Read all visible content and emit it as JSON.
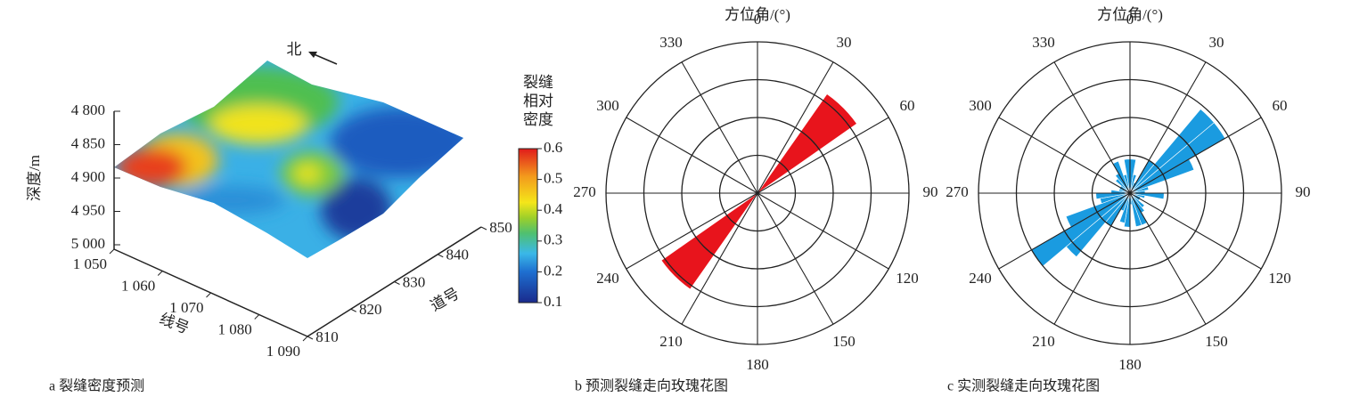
{
  "chart_data": [
    {
      "type": "surface3d",
      "annotation": "北",
      "ylabel": "深度/m",
      "ylim": [
        4800,
        5000
      ],
      "yticks": [
        {
          "value": 4800,
          "label": "4 800"
        },
        {
          "value": 4850,
          "label": "4 850"
        },
        {
          "value": 4900,
          "label": "4 900"
        },
        {
          "value": 4950,
          "label": "4 950"
        },
        {
          "value": 5000,
          "label": "5 000"
        }
      ],
      "xlabel": "线号",
      "xlim": [
        1050,
        1090
      ],
      "xticks": [
        {
          "value": 1050,
          "label": "1 050"
        },
        {
          "value": 1060,
          "label": "1 060"
        },
        {
          "value": 1070,
          "label": "1 070"
        },
        {
          "value": 1080,
          "label": "1 080"
        },
        {
          "value": 1090,
          "label": "1 090"
        }
      ],
      "zlabel": "道号",
      "zlim": [
        810,
        850
      ],
      "zticks": [
        810,
        820,
        830,
        840,
        850
      ],
      "colorbar": {
        "label": "裂缝相对密度",
        "clim": [
          0.1,
          0.6
        ],
        "ticks": [
          0.1,
          0.2,
          0.3,
          0.4,
          0.5,
          0.6
        ]
      },
      "caption": "a 裂缝密度预测"
    },
    {
      "type": "rose",
      "title": "方位角/(°)",
      "caption": "b 预测裂缝走向玫瑰花图",
      "color": "#e8141c",
      "rlim": [
        0,
        4
      ],
      "rticks": [
        1,
        2,
        3,
        4
      ],
      "bin_width": 20,
      "angle_ticks": [
        0,
        30,
        60,
        90,
        120,
        150,
        180,
        210,
        240,
        270,
        300,
        330
      ],
      "directions": [
        45,
        225
      ],
      "values": [
        3.2,
        3.1
      ]
    },
    {
      "type": "rose",
      "title": "方位角/(°)",
      "caption": "c 实测裂缝走向玫瑰花图",
      "color": "#1a9be0",
      "rlim": [
        0,
        4
      ],
      "rticks": [
        1,
        2,
        3,
        4
      ],
      "bin_width": 10,
      "angle_ticks": [
        0,
        30,
        60,
        90,
        120,
        150,
        180,
        210,
        240,
        270,
        300,
        330
      ],
      "directions": [
        5,
        15,
        25,
        35,
        45,
        55,
        65,
        75,
        85,
        95,
        105,
        115,
        125,
        135,
        145,
        155,
        165,
        175,
        185,
        195,
        205,
        215,
        225,
        235,
        245,
        255,
        265,
        275,
        285,
        295,
        305,
        315,
        325,
        335,
        345,
        355
      ],
      "values": [
        0.9,
        0.5,
        0.3,
        1.0,
        2.9,
        2.9,
        1.8,
        0.5,
        0.4,
        0.9,
        0.4,
        0.3,
        0.3,
        0.5,
        0.6,
        0.9,
        0.9,
        0.3,
        0.9,
        0.8,
        0.5,
        1.0,
        2.2,
        3.0,
        1.8,
        0.8,
        0.9,
        0.5,
        0.3,
        0.3,
        0.3,
        0.5,
        0.6,
        0.9,
        0.5,
        0.9
      ]
    }
  ]
}
